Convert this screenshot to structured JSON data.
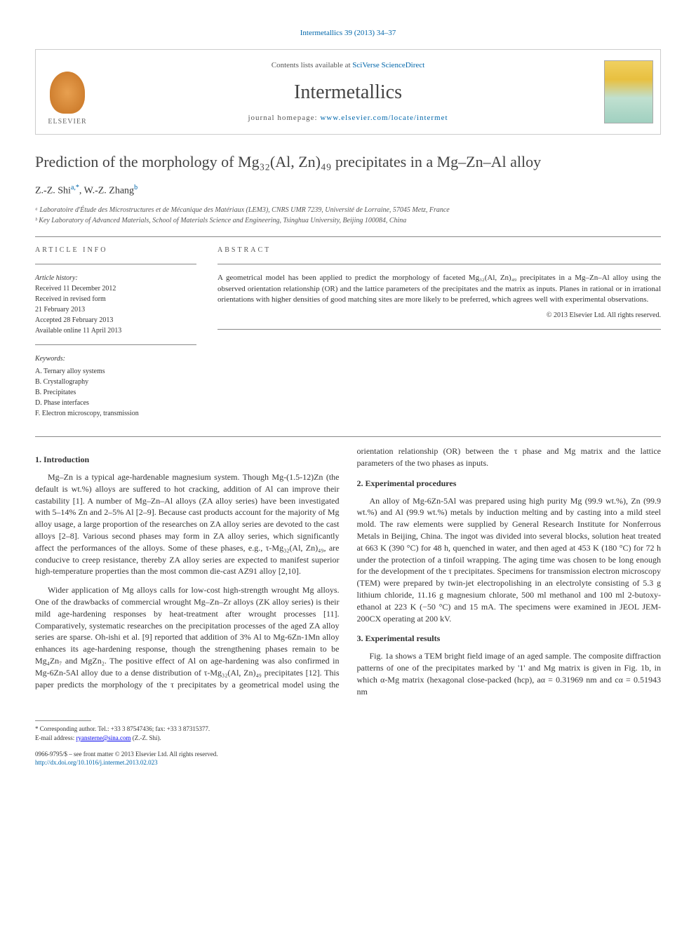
{
  "citation": "Intermetallics 39 (2013) 34–37",
  "header": {
    "contents_prefix": "Contents lists available at ",
    "contents_link": "SciVerse ScienceDirect",
    "journal_name": "Intermetallics",
    "homepage_prefix": "journal homepage: ",
    "homepage_url": "www.elsevier.com/locate/intermet",
    "publisher": "ELSEVIER",
    "cover_label": "Intermetallics"
  },
  "title": "Prediction of the morphology of Mg₃₂(Al, Zn)₄₉ precipitates in a Mg–Zn–Al alloy",
  "authors": {
    "text": "Z.-Z. Shi",
    "sup1": "a,*",
    "sep": ", W.-Z. Zhang",
    "sup2": "b"
  },
  "affiliations": {
    "a": "ᵃ Laboratoire d'Étude des Microstructures et de Mécanique des Matériaux (LEM3), CNRS UMR 7239, Université de Lorraine, 57045 Metz, France",
    "b": "ᵇ Key Laboratory of Advanced Materials, School of Materials Science and Engineering, Tsinghua University, Beijing 100084, China"
  },
  "article_info": {
    "heading": "ARTICLE INFO",
    "history_label": "Article history:",
    "history": [
      "Received 11 December 2012",
      "Received in revised form",
      "21 February 2013",
      "Accepted 28 February 2013",
      "Available online 11 April 2013"
    ],
    "keywords_label": "Keywords:",
    "keywords": [
      "A. Ternary alloy systems",
      "B. Crystallography",
      "B. Precipitates",
      "D. Phase interfaces",
      "F. Electron microscopy, transmission"
    ]
  },
  "abstract": {
    "heading": "ABSTRACT",
    "text": "A geometrical model has been applied to predict the morphology of faceted Mg₃₂(Al, Zn)₄₉ precipitates in a Mg–Zn–Al alloy using the observed orientation relationship (OR) and the lattice parameters of the precipitates and the matrix as inputs. Planes in rational or in irrational orientations with higher densities of good matching sites are more likely to be preferred, which agrees well with experimental observations.",
    "copyright": "© 2013 Elsevier Ltd. All rights reserved."
  },
  "sections": {
    "intro_heading": "1. Introduction",
    "intro_p1": "Mg–Zn is a typical age-hardenable magnesium system. Though Mg-(1.5-12)Zn (the default is wt.%) alloys are suffered to hot cracking, addition of Al can improve their castability [1]. A number of Mg–Zn–Al alloys (ZA alloy series) have been investigated with 5–14% Zn and 2–5% Al [2–9]. Because cast products account for the majority of Mg alloy usage, a large proportion of the researches on ZA alloy series are devoted to the cast alloys [2–8]. Various second phases may form in ZA alloy series, which significantly affect the performances of the alloys. Some of these phases, e.g., τ-Mg₃₂(Al, Zn)₄₉, are conducive to creep resistance, thereby ZA alloy series are expected to manifest superior high-temperature properties than the most common die-cast AZ91 alloy [2,10].",
    "intro_p2": "Wider application of Mg alloys calls for low-cost high-strength wrought Mg alloys. One of the drawbacks of commercial wrought Mg–Zn–Zr alloys (ZK alloy series) is their mild age-hardening responses by heat-treatment after wrought processes [11]. Comparatively, systematic researches on the precipitation processes of the aged ZA alloy series are sparse. Oh-ishi et al. [9] reported that addition of 3% Al to Mg-6Zn-1Mn alloy enhances its age-hardening response, though the strengthening phases remain to be Mg₄Zn₇ and MgZn₂. The positive effect of Al on age-hardening was also confirmed in Mg-6Zn-5Al alloy due to a dense distribution of τ-Mg₃₂(Al, Zn)₄₉ precipitates [12]. This paper predicts the morphology of the τ precipitates by a geometrical model using the orientation relationship (OR) between the τ phase and Mg matrix and the lattice parameters of the two phases as inputs.",
    "exp_heading": "2. Experimental procedures",
    "exp_p1": "An alloy of Mg-6Zn-5Al was prepared using high purity Mg (99.9 wt.%), Zn (99.9 wt.%) and Al (99.9 wt.%) metals by induction melting and by casting into a mild steel mold. The raw elements were supplied by General Research Institute for Nonferrous Metals in Beijing, China. The ingot was divided into several blocks, solution heat treated at 663 K (390 °C) for 48 h, quenched in water, and then aged at 453 K (180 °C) for 72 h under the protection of a tinfoil wrapping. The aging time was chosen to be long enough for the development of the τ precipitates. Specimens for transmission electron microscopy (TEM) were prepared by twin-jet electropolishing in an electrolyte consisting of 5.3 g lithium chloride, 11.16 g magnesium chlorate, 500 ml methanol and 100 ml 2-butoxy-ethanol at 223 K (−50 °C) and 15 mA. The specimens were examined in JEOL JEM-200CX operating at 200 kV.",
    "results_heading": "3. Experimental results",
    "results_p1": "Fig. 1a shows a TEM bright field image of an aged sample. The composite diffraction patterns of one of the precipitates marked by '1' and Mg matrix is given in Fig. 1b, in which α-Mg matrix (hexagonal close-packed (hcp), aα = 0.31969 nm and cα = 0.51943 nm"
  },
  "footer": {
    "corresponding": "* Corresponding author. Tel.: +33 3 87547436; fax: +33 3 87315377.",
    "email_label": "E-mail address: ",
    "email": "ryansterne@sina.com",
    "email_who": " (Z.-Z. Shi).",
    "issn": "0966-9795/$ – see front matter © 2013 Elsevier Ltd. All rights reserved.",
    "doi": "http://dx.doi.org/10.1016/j.intermet.2013.02.023"
  },
  "colors": {
    "link": "#0066aa",
    "text": "#333333",
    "heading": "#444444",
    "border": "#cccccc"
  }
}
